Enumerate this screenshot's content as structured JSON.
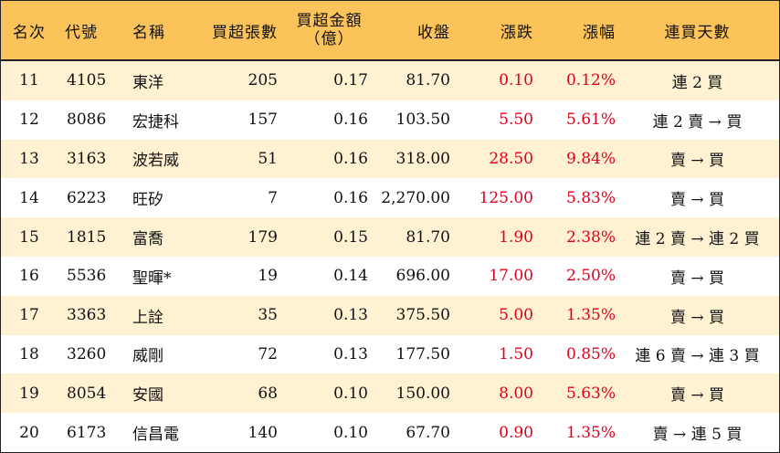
{
  "headers": {
    "rank": "名次",
    "code": "代號",
    "name": "名稱",
    "net_buy_lots": "買超張數",
    "net_buy_amount_line1": "買超金額",
    "net_buy_amount_line2": "（億）",
    "close": "收盤",
    "change": "漲跌",
    "change_pct": "漲幅",
    "consecutive_days": "連買天數"
  },
  "colors": {
    "header_bg": "#fbc35a",
    "odd_row_bg": "#fff2d3",
    "even_row_bg": "#ffffff",
    "up": "#e0001b"
  },
  "rows": [
    {
      "rank": "11",
      "code": "4105",
      "name": "東洋",
      "lots": "205",
      "amount": "0.17",
      "close": "81.70",
      "change": "0.10",
      "pct": "0.12%",
      "days": "連 2 買"
    },
    {
      "rank": "12",
      "code": "8086",
      "name": "宏捷科",
      "lots": "157",
      "amount": "0.16",
      "close": "103.50",
      "change": "5.50",
      "pct": "5.61%",
      "days": "連 2 賣 → 買"
    },
    {
      "rank": "13",
      "code": "3163",
      "name": "波若威",
      "lots": "51",
      "amount": "0.16",
      "close": "318.00",
      "change": "28.50",
      "pct": "9.84%",
      "days": "賣 → 買"
    },
    {
      "rank": "14",
      "code": "6223",
      "name": "旺矽",
      "lots": "7",
      "amount": "0.16",
      "close": "2,270.00",
      "change": "125.00",
      "pct": "5.83%",
      "days": "賣 → 買"
    },
    {
      "rank": "15",
      "code": "1815",
      "name": "富喬",
      "lots": "179",
      "amount": "0.15",
      "close": "81.70",
      "change": "1.90",
      "pct": "2.38%",
      "days": "連 2 賣 → 連 2 買"
    },
    {
      "rank": "16",
      "code": "5536",
      "name": "聖暉*",
      "lots": "19",
      "amount": "0.14",
      "close": "696.00",
      "change": "17.00",
      "pct": "2.50%",
      "days": "賣 → 買"
    },
    {
      "rank": "17",
      "code": "3363",
      "name": "上詮",
      "lots": "35",
      "amount": "0.13",
      "close": "375.50",
      "change": "5.00",
      "pct": "1.35%",
      "days": "賣 → 買"
    },
    {
      "rank": "18",
      "code": "3260",
      "name": "威剛",
      "lots": "72",
      "amount": "0.13",
      "close": "177.50",
      "change": "1.50",
      "pct": "0.85%",
      "days": "連 6 賣 → 連 3 買"
    },
    {
      "rank": "19",
      "code": "8054",
      "name": "安國",
      "lots": "68",
      "amount": "0.10",
      "close": "150.00",
      "change": "8.00",
      "pct": "5.63%",
      "days": "賣 → 買"
    },
    {
      "rank": "20",
      "code": "6173",
      "name": "信昌電",
      "lots": "140",
      "amount": "0.10",
      "close": "67.70",
      "change": "0.90",
      "pct": "1.35%",
      "days": "賣 → 連 5 買"
    }
  ]
}
